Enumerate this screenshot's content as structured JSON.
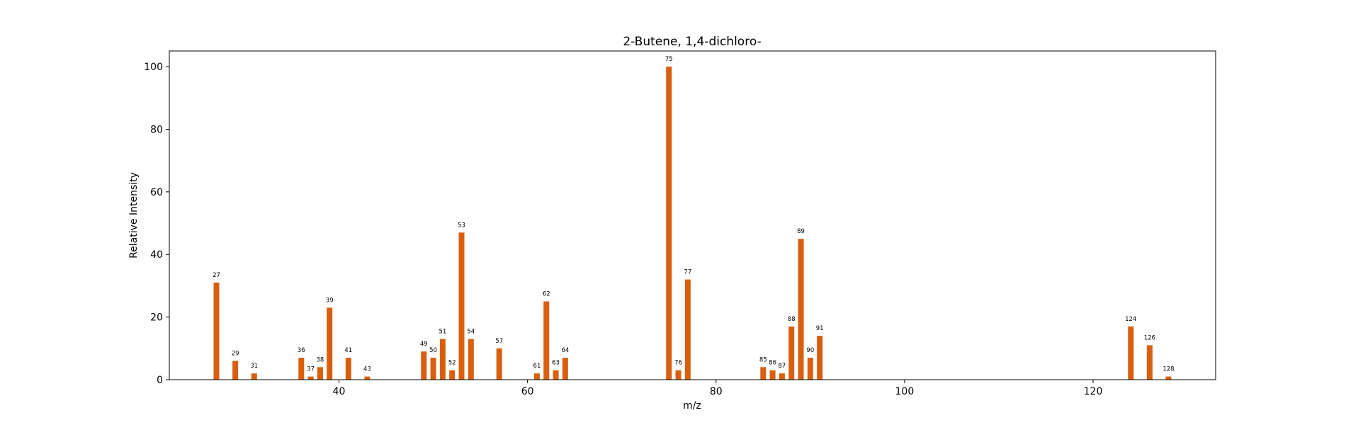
{
  "chart_data": {
    "type": "bar",
    "title": "2-Butene, 1,4-dichloro-",
    "xlabel": "m/z",
    "ylabel": "Relative Intensity",
    "xlim": [
      22,
      133
    ],
    "ylim": [
      0,
      105
    ],
    "xticks": [
      40,
      60,
      80,
      100,
      120
    ],
    "yticks": [
      0,
      20,
      40,
      60,
      80,
      100
    ],
    "bar_color": "#d95f0e",
    "grid": false,
    "x": [
      27,
      29,
      31,
      36,
      37,
      38,
      39,
      41,
      43,
      49,
      50,
      51,
      52,
      53,
      54,
      57,
      61,
      62,
      63,
      64,
      75,
      76,
      77,
      85,
      86,
      87,
      88,
      89,
      90,
      91,
      124,
      126,
      128
    ],
    "values": [
      31,
      6,
      2,
      7,
      1,
      4,
      23,
      7,
      1,
      9,
      7,
      13,
      3,
      47,
      13,
      10,
      2,
      25,
      3,
      7,
      100,
      3,
      32,
      4,
      3,
      2,
      17,
      45,
      7,
      14,
      17,
      11,
      1
    ],
    "labels": [
      "27",
      "29",
      "31",
      "36",
      "37",
      "38",
      "39",
      "41",
      "43",
      "49",
      "50",
      "51",
      "52",
      "53",
      "54",
      "57",
      "61",
      "62",
      "63",
      "64",
      "75",
      "76",
      "77",
      "85",
      "86",
      "87",
      "88",
      "89",
      "90",
      "91",
      "124",
      "126",
      "128"
    ]
  }
}
